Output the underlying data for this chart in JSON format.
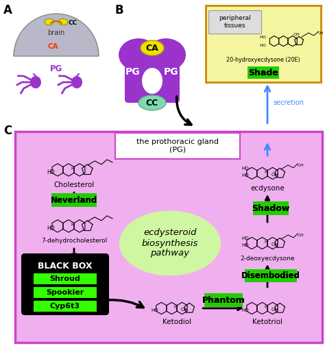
{
  "bg_color": "#ffffff",
  "pg_color": "#9933cc",
  "brain_color": "#b8b8c8",
  "ca_yellow": "#f0e000",
  "cc_teal": "#80d8b0",
  "green_enzyme_bg": "#22cc00",
  "green_bright": "#33ff00",
  "peripheral_box_bg": "#f5f5a0",
  "peripheral_box_border": "#cc8800",
  "main_panel_bg": "#f0b0f0",
  "main_panel_border": "#cc44cc",
  "pg_box_border": "#cc44cc",
  "secretion_color": "#4488ff",
  "black_box_bg": "#000000",
  "ecdysteroid_ellipse": "#ccff99",
  "labels": {
    "A": "A",
    "B": "B",
    "C": "C",
    "brain": "brain",
    "CC": "CC",
    "CA": "CA",
    "PG": "PG",
    "peripheral_tissues": "peripheral\ntissues",
    "compound_20E": "20-hydroxyecdysone (20E)",
    "Shade": "Shade",
    "secretion": "secretion",
    "pg_box": "the prothoracic gland\n(PG)",
    "Cholesterol": "Cholesterol",
    "Neverland": "Neverland",
    "dehydro": "7-dehydrocholesterol",
    "BLACK_BOX": "BLACK BOX",
    "Shroud": "Shroud",
    "Spookier": "Spookier",
    "Cyp6t3": "Cyp6t3",
    "ecdysteroid": "ecdysteroid\nbiosynthesis\npathway",
    "ecdysone": "ecdysone",
    "Shadow": "Shadow",
    "deoxyecdysone": "2-deoxyecdysone",
    "Disembodied": "Disembodied",
    "Ketodiol": "Ketodiol",
    "Phantom": "Phantom",
    "Ketotriol": "Ketotriol"
  }
}
